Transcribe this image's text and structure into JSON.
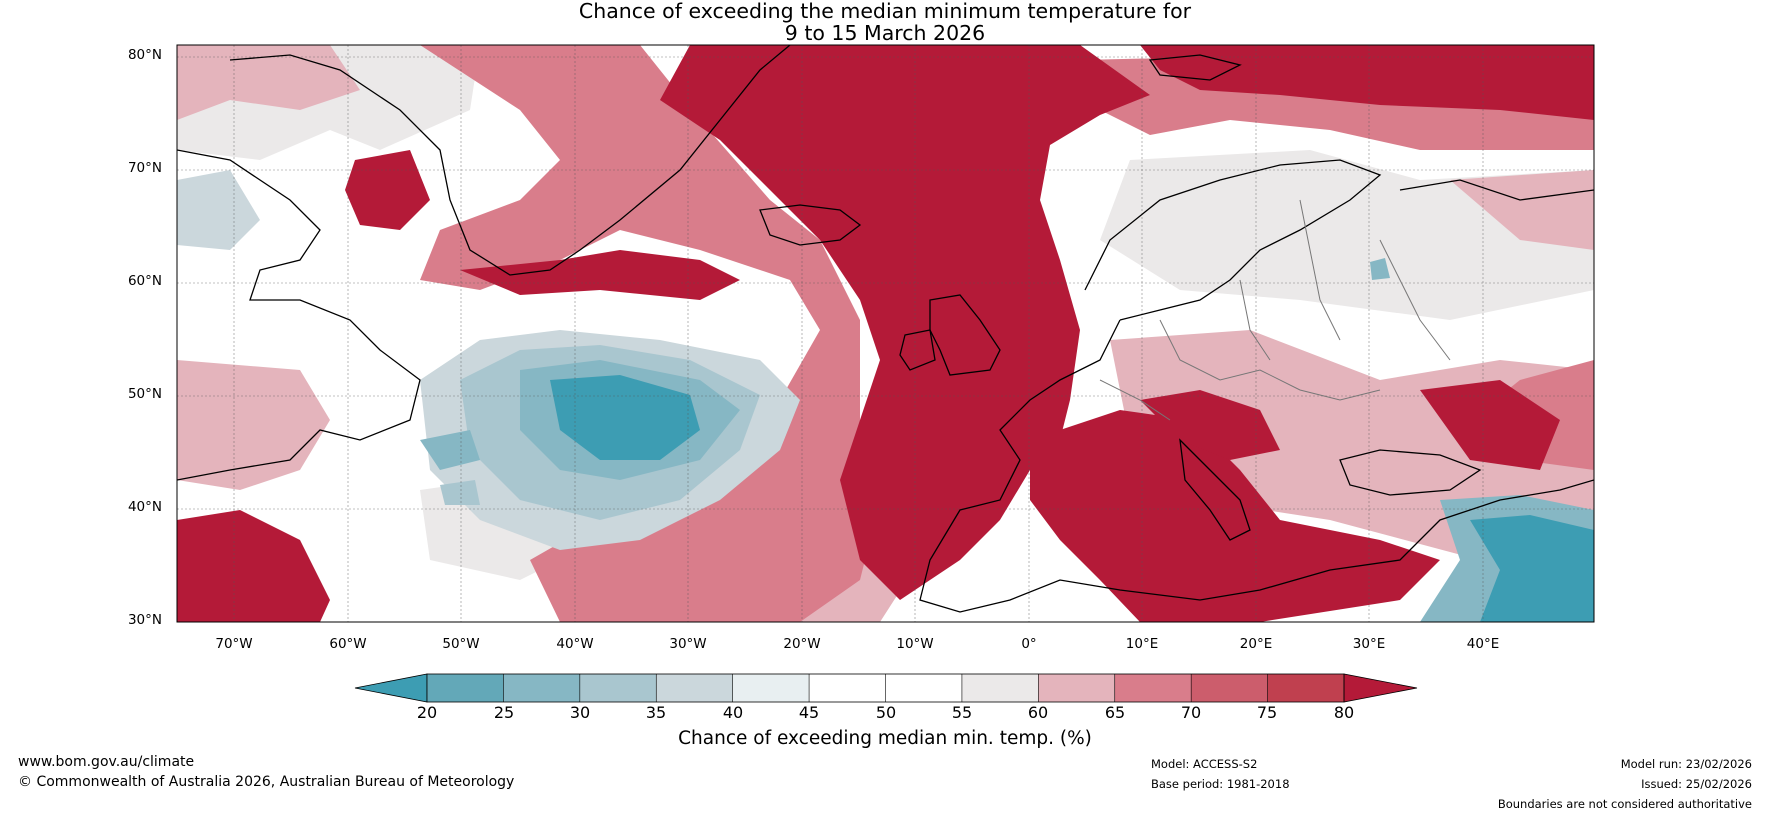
{
  "title": {
    "line1": "Chance of exceeding the median minimum temperature for",
    "line2": "9 to 15 March 2026"
  },
  "map": {
    "latitude_labels": [
      "80°N",
      "70°N",
      "60°N",
      "50°N",
      "40°N",
      "30°N"
    ],
    "longitude_labels": [
      "70°W",
      "60°W",
      "50°W",
      "40°W",
      "30°W",
      "20°W",
      "10°W",
      "0°",
      "10°E",
      "20°E",
      "30°E",
      "40°E"
    ],
    "ocean_background_color": "#ffffff"
  },
  "colorbar": {
    "ticks": [
      "20",
      "25",
      "30",
      "35",
      "40",
      "45",
      "50",
      "55",
      "60",
      "65",
      "70",
      "75",
      "80"
    ],
    "colors": [
      "#3d9db3",
      "#63a8b8",
      "#86b7c4",
      "#a9c6cf",
      "#cbd7dc",
      "#e8eff1",
      "#ffffff",
      "#ffffff",
      "#ebe9e9",
      "#e4b4bc",
      "#d97d8b",
      "#cc5d6c",
      "#c0404f",
      "#b41a38"
    ],
    "label": "Chance of exceeding median min. temp. (%)"
  },
  "footer": {
    "website": "www.bom.gov.au/climate",
    "copyright": "© Commonwealth of Australia 2026, Australian Bureau of Meteorology",
    "model": "Model: ACCESS-S2",
    "base_period": "Base period: 1981-2018",
    "model_run": "Model run: 23/02/2026",
    "issued": "Issued: 25/02/2026",
    "disclaimer": "Boundaries are not considered authoritative"
  }
}
